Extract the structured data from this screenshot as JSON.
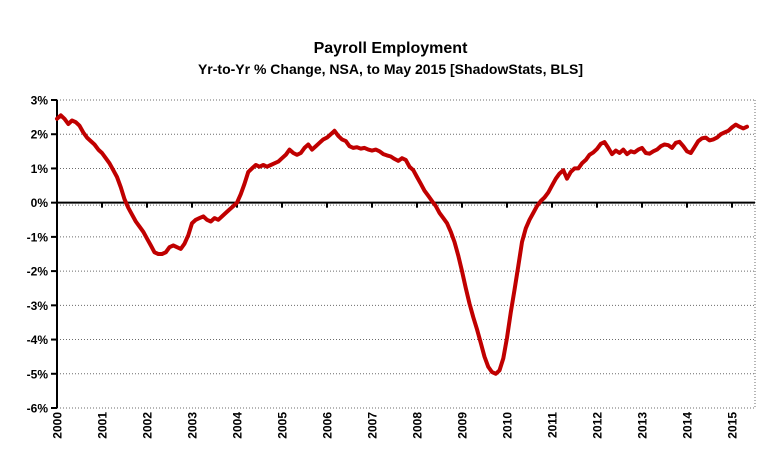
{
  "header": {
    "title": "Payroll Employment",
    "subtitle": "Yr-to-Yr % Change, NSA, to May 2015 [ShadowStats, BLS]"
  },
  "chart_data": {
    "type": "line",
    "title": "Payroll Employment",
    "subtitle": "Yr-to-Yr % Change, NSA, to May 2015 [ShadowStats, BLS]",
    "xlabel": "",
    "ylabel": "",
    "ylim": [
      -6,
      3
    ],
    "grid": "dotted-horizontal",
    "zero_axis_emphasized": true,
    "legend": "none",
    "line_color": "#C00000",
    "axis_color": "#000000",
    "grid_color": "#6b6b6b",
    "y_tick_labels": [
      "3%",
      "2%",
      "1%",
      "0%",
      "-1%",
      "-2%",
      "-3%",
      "-4%",
      "-5%",
      "-6%"
    ],
    "y_tick_values": [
      3,
      2,
      1,
      0,
      -1,
      -2,
      -3,
      -4,
      -5,
      -6
    ],
    "x_labels": [
      "2000",
      "2001",
      "2002",
      "2003",
      "2004",
      "2005",
      "2006",
      "2007",
      "2008",
      "2009",
      "2010",
      "2011",
      "2012",
      "2013",
      "2014",
      "2015"
    ],
    "x_label_rotation_deg": -90,
    "series": [
      {
        "name": "Payroll Employment Yr-to-Yr % Change (NSA)",
        "frequency": "monthly",
        "start": "2000-01",
        "end": "2015-05",
        "values": [
          2.45,
          2.55,
          2.45,
          2.3,
          2.4,
          2.35,
          2.25,
          2.05,
          1.9,
          1.8,
          1.7,
          1.55,
          1.45,
          1.3,
          1.15,
          0.95,
          0.75,
          0.45,
          0.1,
          -0.15,
          -0.35,
          -0.55,
          -0.7,
          -0.85,
          -1.05,
          -1.25,
          -1.45,
          -1.5,
          -1.5,
          -1.45,
          -1.3,
          -1.25,
          -1.3,
          -1.35,
          -1.2,
          -0.95,
          -0.6,
          -0.5,
          -0.45,
          -0.4,
          -0.5,
          -0.55,
          -0.45,
          -0.5,
          -0.4,
          -0.3,
          -0.2,
          -0.1,
          0.0,
          0.25,
          0.55,
          0.9,
          1.0,
          1.1,
          1.05,
          1.1,
          1.05,
          1.1,
          1.15,
          1.2,
          1.3,
          1.4,
          1.55,
          1.45,
          1.4,
          1.45,
          1.6,
          1.7,
          1.55,
          1.65,
          1.75,
          1.85,
          1.9,
          2.0,
          2.1,
          1.95,
          1.85,
          1.8,
          1.65,
          1.6,
          1.62,
          1.58,
          1.6,
          1.55,
          1.52,
          1.55,
          1.5,
          1.42,
          1.38,
          1.35,
          1.28,
          1.22,
          1.3,
          1.25,
          1.05,
          0.95,
          0.75,
          0.55,
          0.35,
          0.2,
          0.05,
          -0.1,
          -0.3,
          -0.45,
          -0.6,
          -0.85,
          -1.15,
          -1.55,
          -2.0,
          -2.5,
          -2.95,
          -3.35,
          -3.7,
          -4.1,
          -4.5,
          -4.8,
          -4.95,
          -5.0,
          -4.9,
          -4.55,
          -3.95,
          -3.2,
          -2.55,
          -1.85,
          -1.15,
          -0.75,
          -0.5,
          -0.3,
          -0.1,
          0.05,
          0.15,
          0.3,
          0.5,
          0.7,
          0.85,
          0.95,
          0.7,
          0.9,
          1.0,
          1.0,
          1.15,
          1.25,
          1.4,
          1.47,
          1.57,
          1.72,
          1.77,
          1.6,
          1.42,
          1.52,
          1.45,
          1.55,
          1.42,
          1.5,
          1.47,
          1.55,
          1.6,
          1.45,
          1.43,
          1.5,
          1.55,
          1.65,
          1.7,
          1.68,
          1.6,
          1.75,
          1.78,
          1.65,
          1.5,
          1.45,
          1.62,
          1.8,
          1.88,
          1.9,
          1.82,
          1.85,
          1.9,
          2.0,
          2.05,
          2.1,
          2.2,
          2.28,
          2.22,
          2.17,
          2.22
        ]
      }
    ]
  }
}
